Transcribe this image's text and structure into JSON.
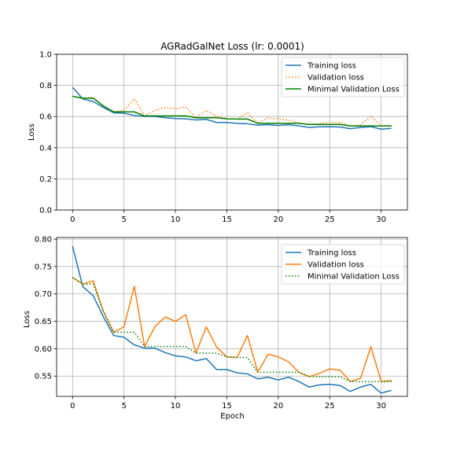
{
  "chart_data": [
    {
      "type": "line",
      "title": "AGRadGalNet Loss (lr: 0.0001)",
      "xlabel": "",
      "ylabel": "Loss",
      "xlim": [
        -1.55,
        32.55
      ],
      "ylim": [
        0.0,
        1.0
      ],
      "xticks": [
        0,
        5,
        10,
        15,
        20,
        25,
        30
      ],
      "yticks": [
        0.0,
        0.2,
        0.4,
        0.6,
        0.8,
        1.0
      ],
      "ytick_labels": [
        "0.0",
        "0.2",
        "0.4",
        "0.6",
        "0.8",
        "1.0"
      ],
      "grid": true,
      "legend_position": "top-right",
      "series_styles": [
        {
          "color": "#1f77b4",
          "dash": "solid"
        },
        {
          "color": "#ff7f0e",
          "dash": "dotted"
        },
        {
          "color": "#008000",
          "dash": "solid"
        }
      ]
    },
    {
      "type": "line",
      "title": "",
      "xlabel": "Epoch",
      "ylabel": "Loss",
      "xlim": [
        -1.55,
        32.55
      ],
      "ylim": [
        0.513,
        0.803
      ],
      "xticks": [
        0,
        5,
        10,
        15,
        20,
        25,
        30
      ],
      "yticks": [
        0.55,
        0.6,
        0.65,
        0.7,
        0.75,
        0.8
      ],
      "ytick_labels": [
        "0.55",
        "0.60",
        "0.65",
        "0.70",
        "0.75",
        "0.80"
      ],
      "grid": true,
      "legend_position": "top-right",
      "series_styles": [
        {
          "color": "#1f77b4",
          "dash": "solid"
        },
        {
          "color": "#ff7f0e",
          "dash": "solid"
        },
        {
          "color": "#008000",
          "dash": "dotted"
        }
      ]
    }
  ],
  "shared": {
    "x": [
      0,
      1,
      2,
      3,
      4,
      5,
      6,
      7,
      8,
      9,
      10,
      11,
      12,
      13,
      14,
      15,
      16,
      17,
      18,
      19,
      20,
      21,
      22,
      23,
      24,
      25,
      26,
      27,
      28,
      29,
      30,
      31
    ],
    "series": [
      {
        "name": "Training loss",
        "values": [
          0.787,
          0.713,
          0.697,
          0.658,
          0.624,
          0.621,
          0.607,
          0.601,
          0.601,
          0.593,
          0.587,
          0.585,
          0.578,
          0.582,
          0.562,
          0.562,
          0.556,
          0.554,
          0.545,
          0.548,
          0.543,
          0.548,
          0.54,
          0.53,
          0.534,
          0.535,
          0.533,
          0.522,
          0.53,
          0.535,
          0.519,
          0.524
        ]
      },
      {
        "name": "Validation loss",
        "values": [
          0.73,
          0.718,
          0.724,
          0.668,
          0.63,
          0.64,
          0.714,
          0.604,
          0.64,
          0.658,
          0.65,
          0.662,
          0.592,
          0.64,
          0.603,
          0.585,
          0.584,
          0.624,
          0.557,
          0.59,
          0.585,
          0.576,
          0.557,
          0.549,
          0.555,
          0.563,
          0.561,
          0.54,
          0.546,
          0.604,
          0.54,
          0.542
        ]
      },
      {
        "name": "Minimal Validation Loss",
        "values": [
          0.73,
          0.718,
          0.718,
          0.668,
          0.63,
          0.63,
          0.63,
          0.604,
          0.604,
          0.604,
          0.604,
          0.604,
          0.592,
          0.592,
          0.592,
          0.585,
          0.584,
          0.584,
          0.557,
          0.557,
          0.557,
          0.557,
          0.557,
          0.549,
          0.549,
          0.549,
          0.549,
          0.54,
          0.54,
          0.54,
          0.54,
          0.54
        ]
      }
    ]
  }
}
